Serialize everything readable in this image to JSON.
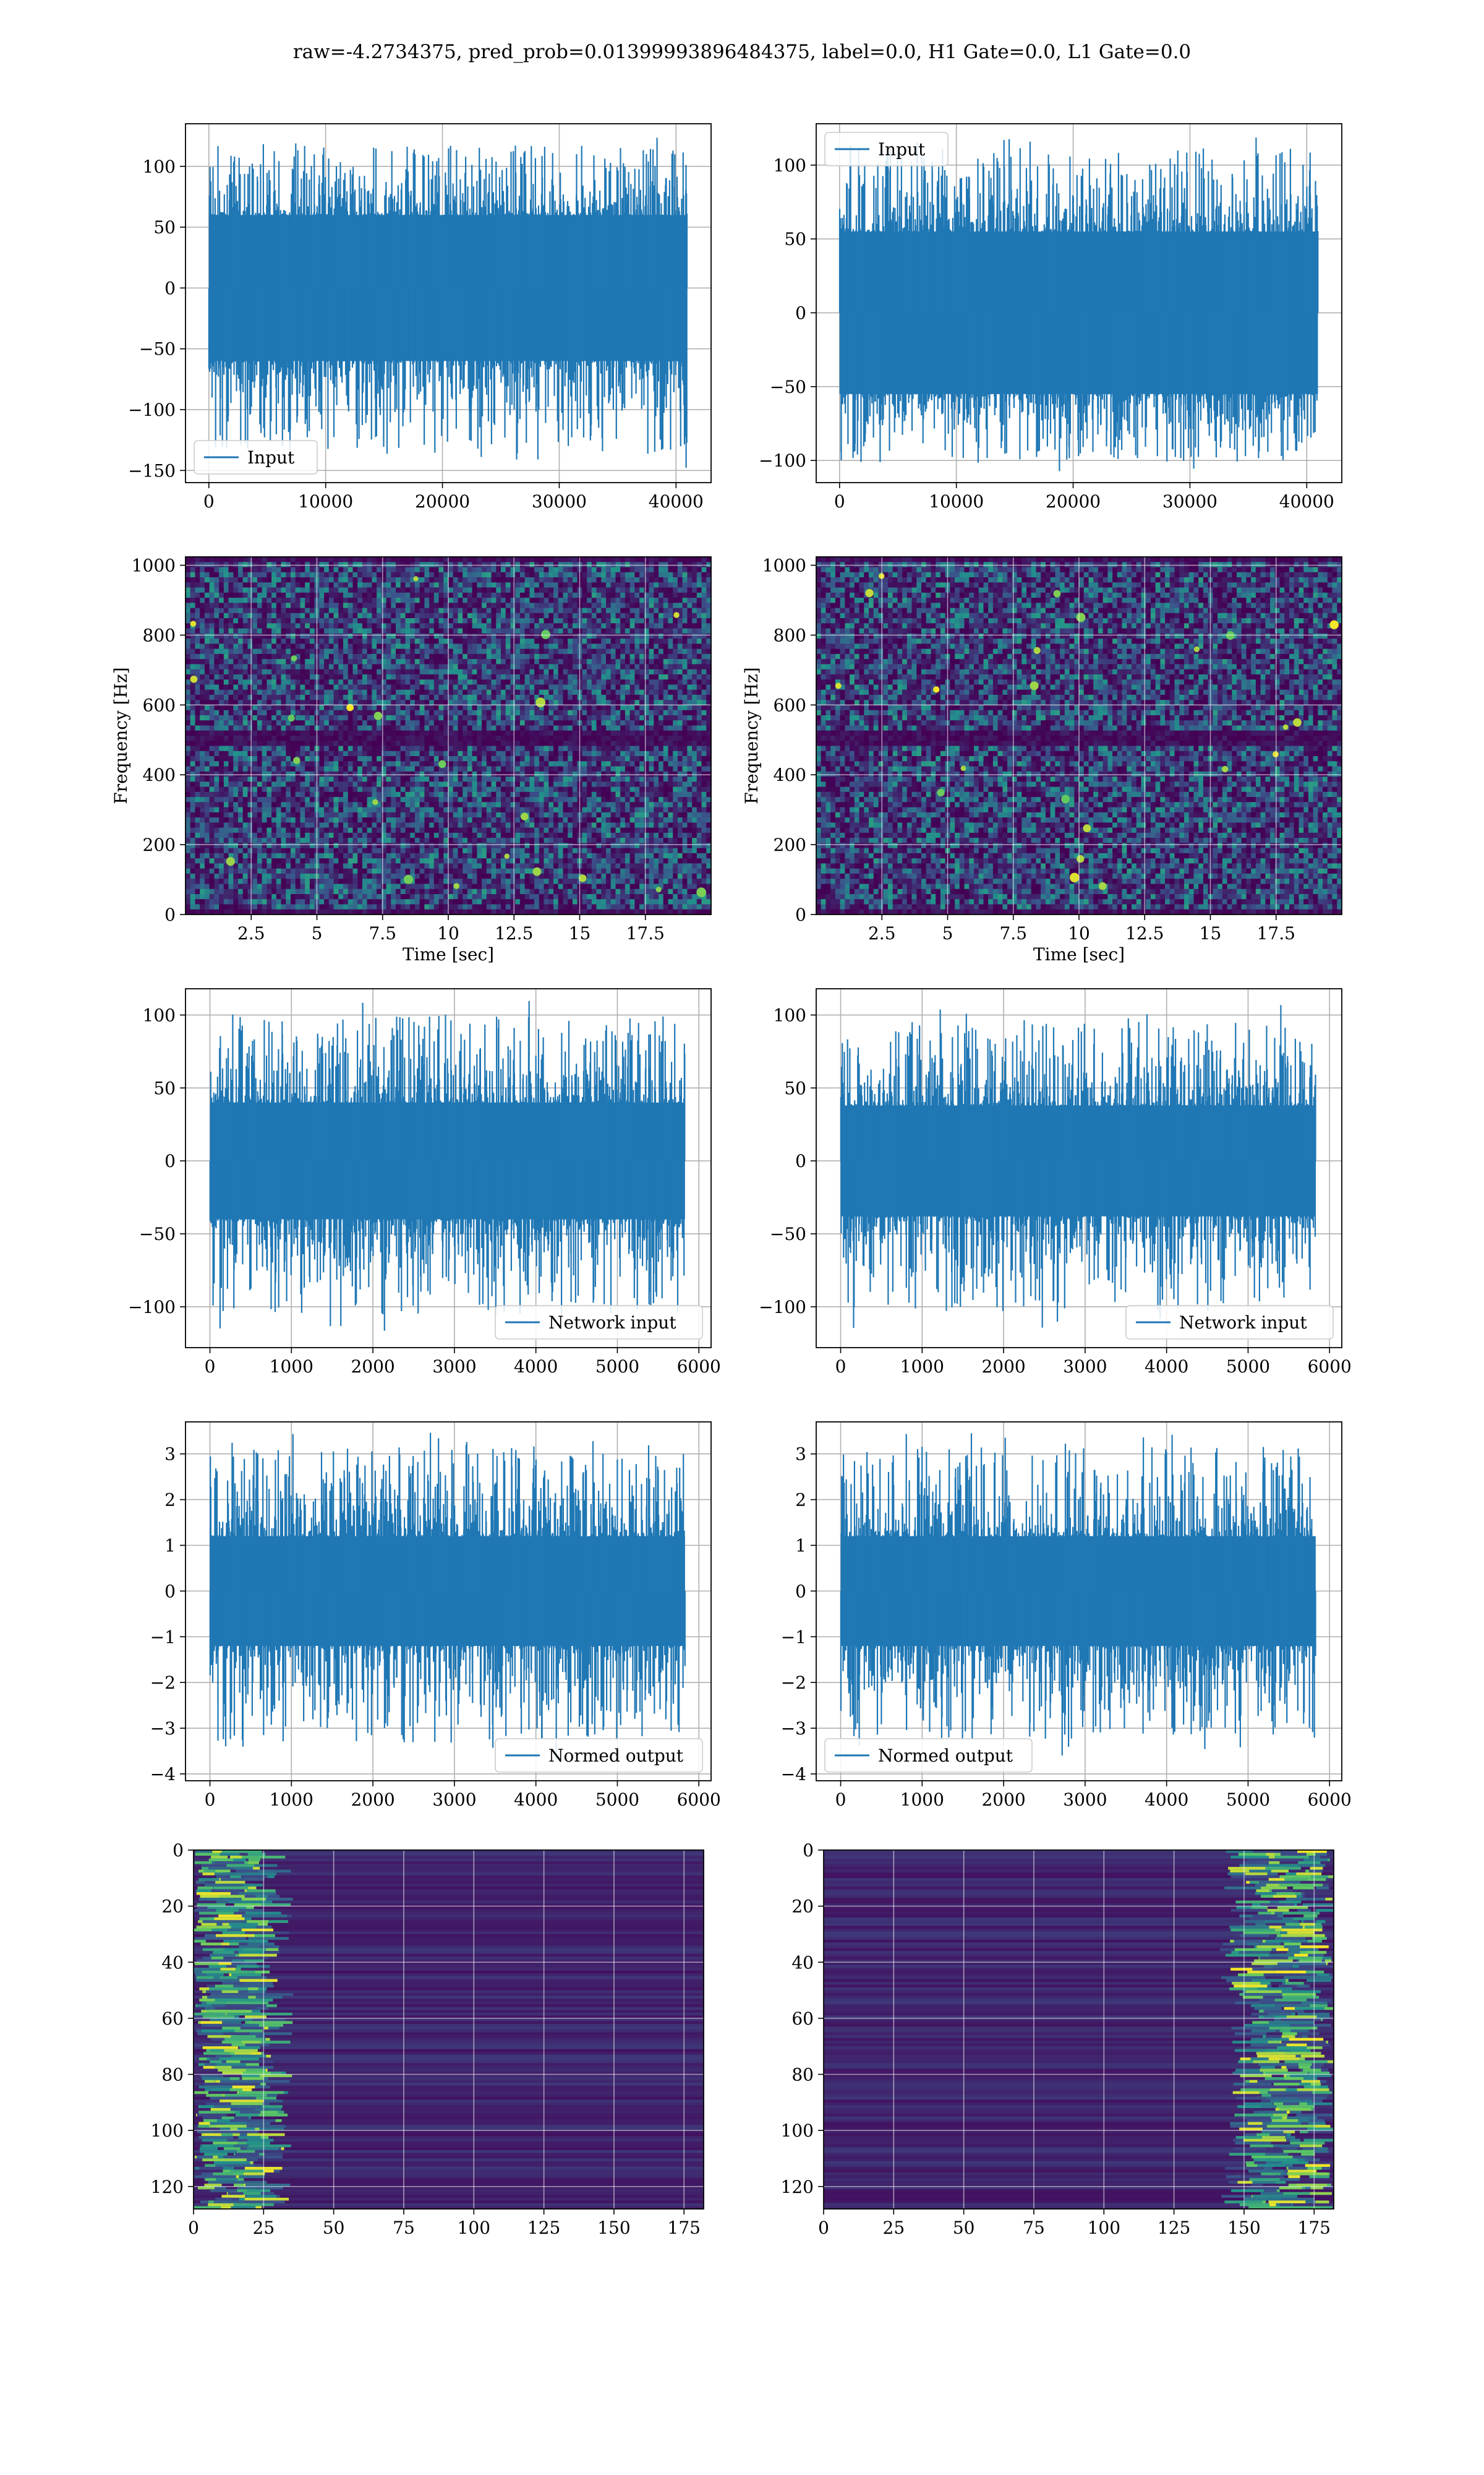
{
  "title": "raw=-4.2734375, pred_prob=0.01399993896484375, label=0.0, H1 Gate=0.0, L1 Gate=0.0",
  "colors": {
    "line": "#1f77b4",
    "grid": "#b0b0b0",
    "cmap": [
      "#440154",
      "#3b528b",
      "#21918c",
      "#5ec962",
      "#fde725"
    ]
  },
  "chart_data": [
    {
      "id": "h1-input",
      "type": "line",
      "series": [
        {
          "name": "Input"
        }
      ],
      "legend": "lower-left",
      "xlim": [
        -2000,
        43000
      ],
      "ylim": [
        -160,
        135
      ],
      "xticks": [
        0,
        10000,
        20000,
        30000,
        40000
      ],
      "yticks": [
        -150,
        -100,
        -50,
        0,
        50,
        100
      ],
      "n": 40960,
      "band": [
        -60,
        60
      ],
      "peak": [
        -150,
        128
      ]
    },
    {
      "id": "l1-input",
      "type": "line",
      "series": [
        {
          "name": "Input"
        }
      ],
      "legend": "upper-left",
      "xlim": [
        -2000,
        43000
      ],
      "ylim": [
        -115,
        128
      ],
      "xticks": [
        0,
        10000,
        20000,
        30000,
        40000
      ],
      "yticks": [
        -100,
        -50,
        0,
        50,
        100
      ],
      "n": 40960,
      "band": [
        -55,
        55
      ],
      "peak": [
        -110,
        122
      ]
    },
    {
      "id": "h1-spectrogram",
      "type": "heatmap",
      "xlabel": "Time [sec]",
      "ylabel": "Frequency [Hz]",
      "xlim": [
        0,
        20
      ],
      "ylim": [
        0,
        1024
      ],
      "xticks": [
        2.5,
        5.0,
        7.5,
        10.0,
        12.5,
        15.0,
        17.5
      ],
      "yticks": [
        0,
        200,
        400,
        600,
        800,
        1000
      ],
      "dark_band_hz": [
        480,
        520
      ]
    },
    {
      "id": "l1-spectrogram",
      "type": "heatmap",
      "xlabel": "Time [sec]",
      "ylabel": "Frequency [Hz]",
      "xlim": [
        0,
        20
      ],
      "ylim": [
        0,
        1024
      ],
      "xticks": [
        2.5,
        5.0,
        7.5,
        10.0,
        12.5,
        15.0,
        17.5
      ],
      "yticks": [
        0,
        200,
        400,
        600,
        800,
        1000
      ],
      "dark_band_hz": [
        480,
        520
      ]
    },
    {
      "id": "h1-network-input",
      "type": "line",
      "series": [
        {
          "name": "Network input"
        }
      ],
      "legend": "lower-right",
      "xlim": [
        -300,
        6150
      ],
      "ylim": [
        -128,
        118
      ],
      "xticks": [
        0,
        1000,
        2000,
        3000,
        4000,
        5000,
        6000
      ],
      "yticks": [
        -100,
        -50,
        0,
        50,
        100
      ],
      "n": 5830,
      "band": [
        -40,
        40
      ],
      "peak": [
        -118,
        110
      ]
    },
    {
      "id": "l1-network-input",
      "type": "line",
      "series": [
        {
          "name": "Network input"
        }
      ],
      "legend": "lower-right",
      "xlim": [
        -300,
        6150
      ],
      "ylim": [
        -128,
        118
      ],
      "xticks": [
        0,
        1000,
        2000,
        3000,
        4000,
        5000,
        6000
      ],
      "yticks": [
        -100,
        -50,
        0,
        50,
        100
      ],
      "n": 5830,
      "band": [
        -38,
        38
      ],
      "peak": [
        -115,
        108
      ]
    },
    {
      "id": "h1-normed-output",
      "type": "line",
      "series": [
        {
          "name": "Normed output"
        }
      ],
      "legend": "lower-right",
      "xlim": [
        -300,
        6150
      ],
      "ylim": [
        -4.15,
        3.7
      ],
      "xticks": [
        0,
        1000,
        2000,
        3000,
        4000,
        5000,
        6000
      ],
      "yticks": [
        -4,
        -3,
        -2,
        -1,
        0,
        1,
        2,
        3
      ],
      "n": 5830,
      "band": [
        -1.2,
        1.2
      ],
      "peak": [
        -3.7,
        3.5
      ]
    },
    {
      "id": "l1-normed-output",
      "type": "line",
      "series": [
        {
          "name": "Normed output"
        }
      ],
      "legend": "lower-left",
      "xlim": [
        -300,
        6150
      ],
      "ylim": [
        -4.15,
        3.7
      ],
      "xticks": [
        0,
        1000,
        2000,
        3000,
        4000,
        5000,
        6000
      ],
      "yticks": [
        -4,
        -3,
        -2,
        -1,
        0,
        1,
        2,
        3
      ],
      "n": 5830,
      "band": [
        -1.2,
        1.2
      ],
      "peak": [
        -3.6,
        3.5
      ]
    },
    {
      "id": "h1-feature-map",
      "type": "heatmap",
      "xlim": [
        0,
        182
      ],
      "ylim": [
        128,
        0
      ],
      "xticks": [
        0,
        25,
        50,
        75,
        100,
        125,
        150,
        175
      ],
      "yticks": [
        0,
        20,
        40,
        60,
        80,
        100,
        120
      ],
      "bright_side": "left"
    },
    {
      "id": "l1-feature-map",
      "type": "heatmap",
      "xlim": [
        0,
        182
      ],
      "ylim": [
        128,
        0
      ],
      "xticks": [
        0,
        25,
        50,
        75,
        100,
        125,
        150,
        175
      ],
      "yticks": [
        0,
        20,
        40,
        60,
        80,
        100,
        120
      ],
      "bright_side": "right"
    }
  ]
}
